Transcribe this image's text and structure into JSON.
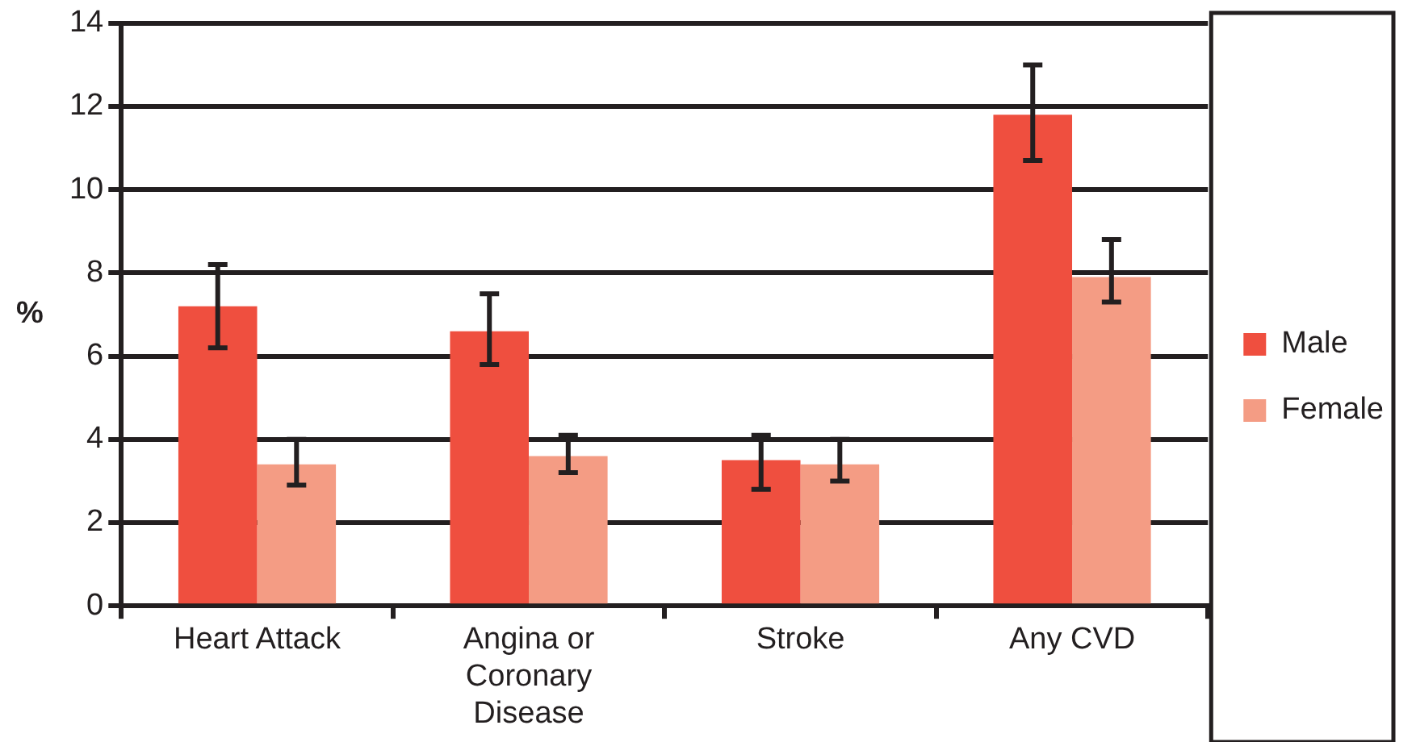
{
  "chart_data": {
    "type": "bar",
    "ylabel": "%",
    "categories": [
      "Heart Attack",
      "Angina or Coronary Disease",
      "Stroke",
      "Any CVD"
    ],
    "series": [
      {
        "name": "Male",
        "color": "#ef4f3f",
        "values": [
          7.2,
          6.6,
          3.5,
          11.8
        ],
        "errors": [
          [
            6.2,
            8.2
          ],
          [
            5.8,
            7.5
          ],
          [
            2.8,
            4.1
          ],
          [
            10.7,
            13.0
          ]
        ]
      },
      {
        "name": "Female",
        "color": "#f49c84",
        "values": [
          3.4,
          3.6,
          3.4,
          7.9
        ],
        "errors": [
          [
            2.9,
            4.0
          ],
          [
            3.2,
            4.1
          ],
          [
            3.0,
            4.0
          ],
          [
            7.3,
            8.8
          ]
        ]
      }
    ],
    "ylim": [
      0,
      14
    ],
    "yticks": [
      0,
      2,
      4,
      6,
      8,
      10,
      12,
      14
    ],
    "grid": "y",
    "legend": "right"
  }
}
